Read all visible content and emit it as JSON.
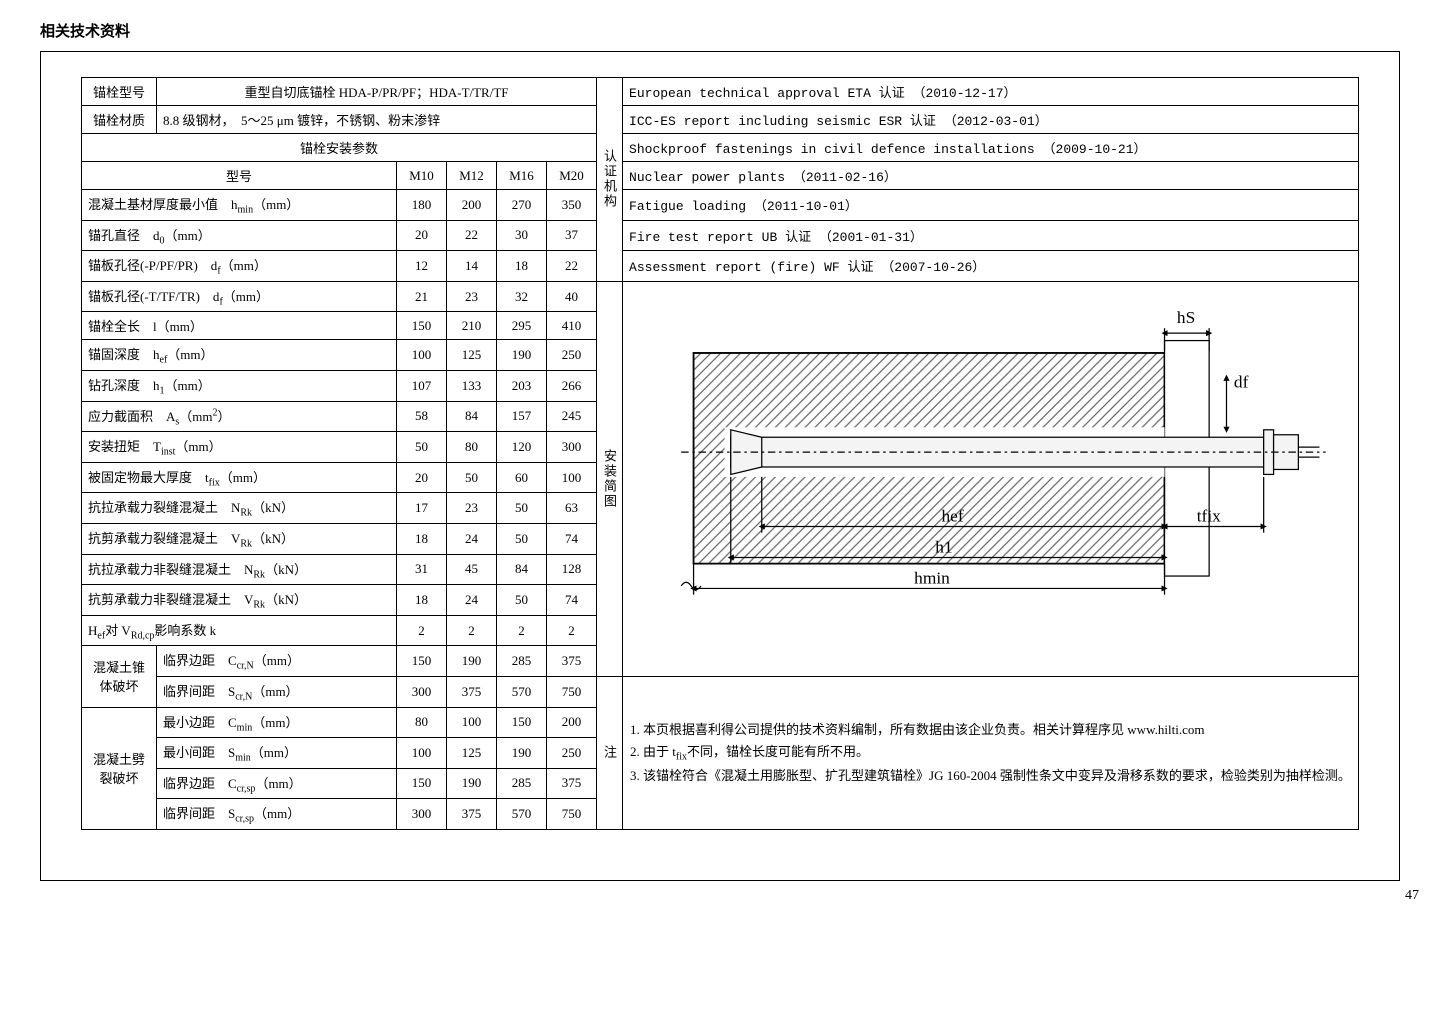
{
  "page_title": "相关技术资料",
  "page_number": "47",
  "colors": {
    "text": "#000000",
    "border": "#000000",
    "bg": "#ffffff",
    "hatch": "#555555",
    "anchor_fill": "#f2f2f2"
  },
  "header_rows": {
    "model_label": "锚栓型号",
    "model_value": "重型自切底锚栓 HDA-P/PR/PF；HDA-T/TR/TF",
    "material_label": "锚栓材质",
    "material_value": "8.8 级钢材，　5～25 μm 镀锌，不锈钢、粉末渗锌",
    "install_params": "锚栓安装参数",
    "spec_label": "型号",
    "spec_values": [
      "M10",
      "M12",
      "M16",
      "M20"
    ]
  },
  "vertical_labels": {
    "cert": "认证机构",
    "diagram": "安装简图",
    "note": "注"
  },
  "param_rows": [
    {
      "label_html": "混凝土基材厚度最小值　h<span class=\"sub\">min</span>（mm）",
      "v": [
        "180",
        "200",
        "270",
        "350"
      ]
    },
    {
      "label_html": "锚孔直径　d<span class=\"sub\">0</span>（mm）",
      "v": [
        "20",
        "22",
        "30",
        "37"
      ]
    },
    {
      "label_html": "锚板孔径(-P/PF/PR)　d<span class=\"sub\">f</span>（mm）",
      "v": [
        "12",
        "14",
        "18",
        "22"
      ]
    },
    {
      "label_html": "锚板孔径(-T/TF/TR)　d<span class=\"sub\">f</span>（mm）",
      "v": [
        "21",
        "23",
        "32",
        "40"
      ]
    },
    {
      "label_html": "锚栓全长　l（mm）",
      "v": [
        "150",
        "210",
        "295",
        "410"
      ]
    },
    {
      "label_html": "锚固深度　h<span class=\"sub\">ef</span>（mm）",
      "v": [
        "100",
        "125",
        "190",
        "250"
      ]
    },
    {
      "label_html": "钻孔深度　h<span class=\"sub\">1</span>（mm）",
      "v": [
        "107",
        "133",
        "203",
        "266"
      ]
    },
    {
      "label_html": "应力截面积　A<span class=\"sub\">s</span>（mm<span class=\"sup\">2</span>）",
      "v": [
        "58",
        "84",
        "157",
        "245"
      ]
    },
    {
      "label_html": "安装扭矩　T<span class=\"sub\">inst</span>（mm）",
      "v": [
        "50",
        "80",
        "120",
        "300"
      ]
    },
    {
      "label_html": "被固定物最大厚度　t<span class=\"sub\">fix</span>（mm）",
      "v": [
        "20",
        "50",
        "60",
        "100"
      ]
    },
    {
      "label_html": "抗拉承载力裂缝混凝土　N<span class=\"sub\">Rk</span>（kN）",
      "v": [
        "17",
        "23",
        "50",
        "63"
      ]
    },
    {
      "label_html": "抗剪承载力裂缝混凝土　V<span class=\"sub\">Rk</span>（kN）",
      "v": [
        "18",
        "24",
        "50",
        "74"
      ]
    },
    {
      "label_html": "抗拉承载力非裂缝混凝土　N<span class=\"sub\">Rk</span>（kN）",
      "v": [
        "31",
        "45",
        "84",
        "128"
      ]
    },
    {
      "label_html": "抗剪承载力非裂缝混凝土　V<span class=\"sub\">Rk</span>（kN）",
      "v": [
        "18",
        "24",
        "50",
        "74"
      ]
    },
    {
      "label_html": "H<span class=\"sub\">ef</span>对 V<span class=\"sub\">Rd,cp</span>影响系数 k",
      "v": [
        "2",
        "2",
        "2",
        "2"
      ]
    }
  ],
  "group_rows": {
    "cone": {
      "group_label": "混凝土锥体破坏",
      "rows": [
        {
          "label_html": "临界边距　C<span class=\"sub\">cr,N</span>（mm）",
          "v": [
            "150",
            "190",
            "285",
            "375"
          ]
        },
        {
          "label_html": "临界间距　S<span class=\"sub\">cr,N</span>（mm）",
          "v": [
            "300",
            "375",
            "570",
            "750"
          ]
        }
      ]
    },
    "split": {
      "group_label": "混凝土劈裂破坏",
      "rows": [
        {
          "label_html": "最小边距　C<span class=\"sub\">min</span>（mm）",
          "v": [
            "80",
            "100",
            "150",
            "200"
          ]
        },
        {
          "label_html": "最小间距　S<span class=\"sub\">min</span>（mm）",
          "v": [
            "100",
            "125",
            "190",
            "250"
          ]
        },
        {
          "label_html": "临界边距　C<span class=\"sub\">cr,sp</span>（mm）",
          "v": [
            "150",
            "190",
            "285",
            "375"
          ]
        },
        {
          "label_html": "临界间距　S<span class=\"sub\">cr,sp</span>（mm）",
          "v": [
            "300",
            "375",
            "570",
            "750"
          ]
        }
      ]
    }
  },
  "cert_rows": [
    "European technical approval ETA 认证 （2010-12-17）",
    "ICC-ES report including seismic ESR 认证 （2012-03-01）",
    "Shockproof fastenings in civil defence installations （2009-10-21）",
    "Nuclear power plants （2011-02-16）",
    "Fatigue loading （2011-10-01）",
    "Fire test report UB 认证 （2001-01-31）",
    "Assessment report (fire) WF 认证 （2007-10-26）"
  ],
  "notes_html": [
    "本页根据喜利得公司提供的技术资料编制，所有数据由该企业负责。相关计算程序见 www.hilti.com",
    "由于 t<span class=\"sub\">fix</span>不同，锚栓长度可能有所不用。",
    "该锚栓符合《混凝土用膨胀型、扩孔型建筑锚栓》JG 160-2004 强制性条文中变异及滑移系数的要求，检验类别为抽样检测。"
  ],
  "diagram": {
    "labels": {
      "hs": "hS",
      "df": "df",
      "hef": "hef",
      "tfix": "tfix",
      "h1": "h1",
      "hmin": "hmin"
    },
    "colors": {
      "stroke": "#000000",
      "hatch": "#666666",
      "fill": "#f4f4f4"
    }
  }
}
